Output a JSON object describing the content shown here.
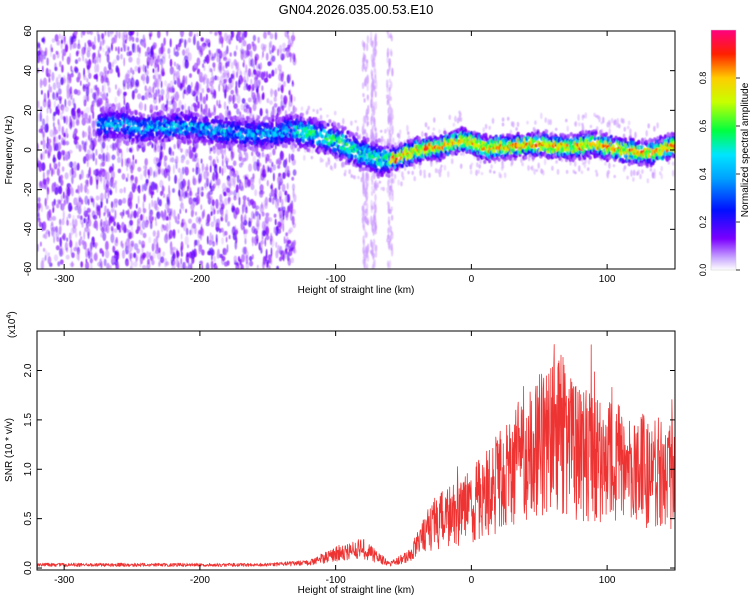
{
  "title": "GN04.2026.035.00.53.E10",
  "chart_data": [
    {
      "type": "heatmap",
      "xlabel": "Height of straight line (km)",
      "ylabel": "Frequency (Hz)",
      "xlim": [
        -320,
        150
      ],
      "ylim": [
        -60,
        60
      ],
      "xticks": [
        -300,
        -200,
        -100,
        0,
        100
      ],
      "yticks": [
        60,
        40,
        20,
        0,
        -20,
        -40,
        -60
      ],
      "colorbar": {
        "label": "Normalized spectral amplitude",
        "range": [
          0,
          1
        ],
        "ticks": [
          "0.0",
          "0.2",
          "0.4",
          "0.6",
          "0.8"
        ],
        "colors": [
          "#ffffff",
          "#7b00ff",
          "#0010ff",
          "#00e5ff",
          "#00ff40",
          "#c8ff00",
          "#ffcc00",
          "#ff2000",
          "#ff0080"
        ]
      },
      "ridge": [
        {
          "x": -265,
          "y": 13
        },
        {
          "x": -240,
          "y": 11
        },
        {
          "x": -215,
          "y": 12
        },
        {
          "x": -190,
          "y": 10
        },
        {
          "x": -160,
          "y": 8
        },
        {
          "x": -130,
          "y": 10
        },
        {
          "x": -110,
          "y": 7
        },
        {
          "x": -95,
          "y": 3
        },
        {
          "x": -80,
          "y": -2
        },
        {
          "x": -65,
          "y": -5
        },
        {
          "x": -55,
          "y": -4
        },
        {
          "x": -40,
          "y": 0
        },
        {
          "x": -20,
          "y": 2
        },
        {
          "x": -5,
          "y": 5
        },
        {
          "x": 10,
          "y": 1
        },
        {
          "x": 30,
          "y": 2
        },
        {
          "x": 50,
          "y": 3
        },
        {
          "x": 70,
          "y": 1
        },
        {
          "x": 90,
          "y": 3
        },
        {
          "x": 110,
          "y": 0
        },
        {
          "x": 130,
          "y": -2
        },
        {
          "x": 148,
          "y": 2
        }
      ]
    },
    {
      "type": "line",
      "xlabel": "Height of straight line (km)",
      "ylabel": "SNR (10 * v/v)",
      "yscale_label": "(x10",
      "yscale_exp": "4",
      "xlim": [
        -320,
        150
      ],
      "ylim": [
        -0.02,
        2.4
      ],
      "xticks": [
        -300,
        -200,
        -100,
        0,
        100
      ],
      "yticks": [
        "0.0",
        "0.5",
        "1.0",
        "1.5",
        "2.0"
      ],
      "series": [
        {
          "color": "#ee3333",
          "envelope": [
            {
              "x": -320,
              "y": 0.05
            },
            {
              "x": -150,
              "y": 0.05
            },
            {
              "x": -120,
              "y": 0.08
            },
            {
              "x": -100,
              "y": 0.22
            },
            {
              "x": -80,
              "y": 0.3
            },
            {
              "x": -60,
              "y": 0.06
            },
            {
              "x": -45,
              "y": 0.2
            },
            {
              "x": -30,
              "y": 0.7
            },
            {
              "x": 0,
              "y": 1.0
            },
            {
              "x": 20,
              "y": 1.4
            },
            {
              "x": 40,
              "y": 1.8
            },
            {
              "x": 60,
              "y": 2.3
            },
            {
              "x": 80,
              "y": 1.9
            },
            {
              "x": 100,
              "y": 1.7
            },
            {
              "x": 120,
              "y": 1.6
            },
            {
              "x": 150,
              "y": 1.5
            }
          ]
        }
      ]
    }
  ]
}
